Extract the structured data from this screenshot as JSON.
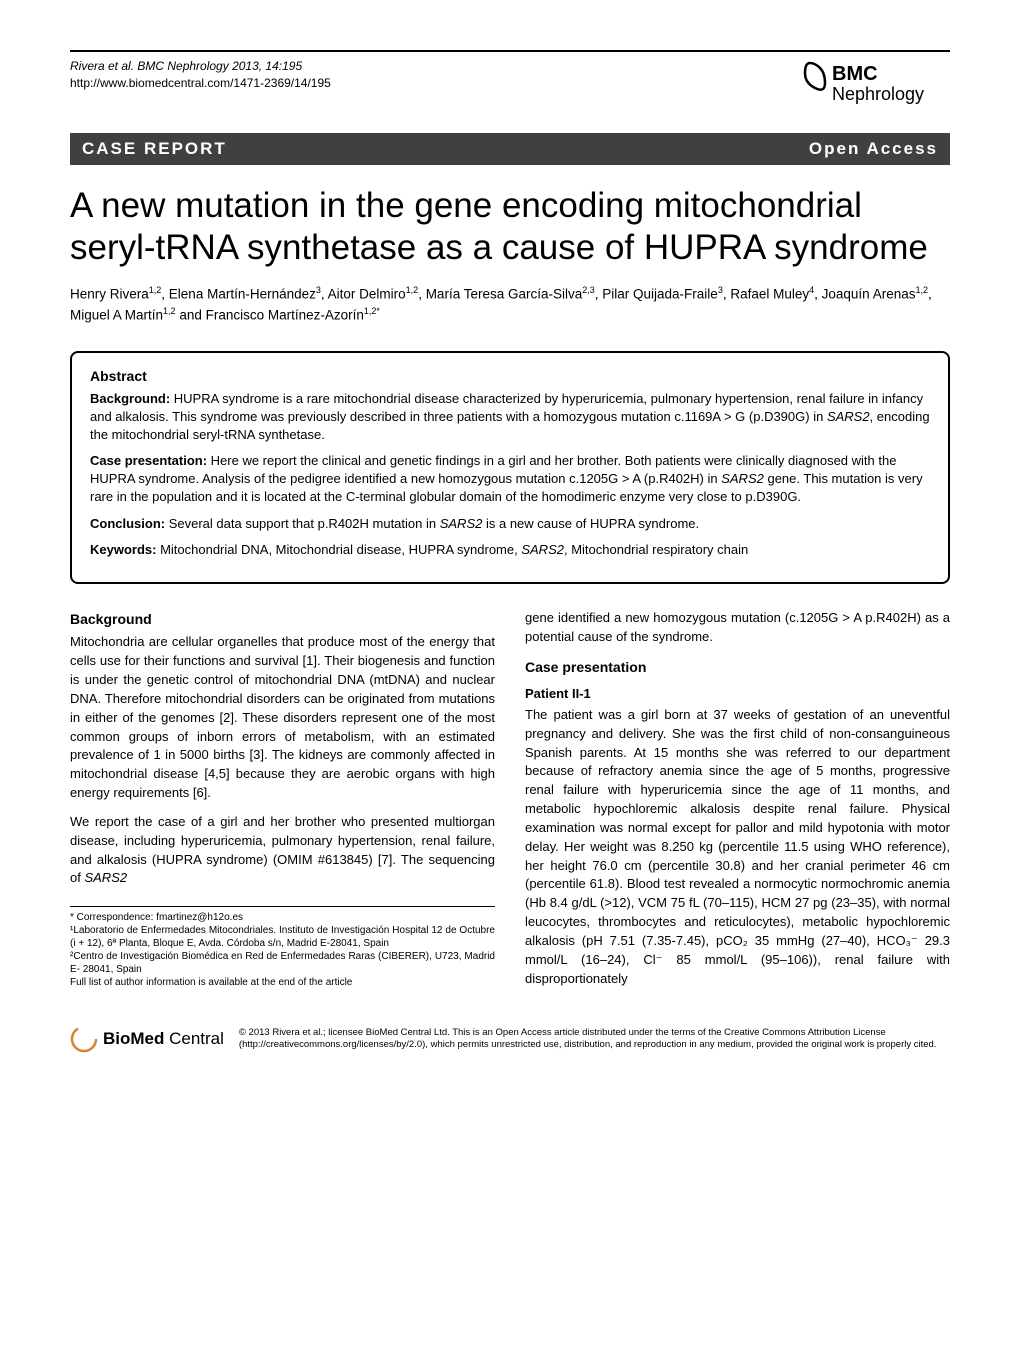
{
  "header": {
    "citation": "Rivera et al. BMC Nephrology 2013, 14:195",
    "url": "http://www.biomedcentral.com/1471-2369/14/195",
    "logo_prefix": "BMC",
    "logo_name": "Nephrology"
  },
  "bar": {
    "label": "CASE REPORT",
    "access": "Open Access"
  },
  "title": "A new mutation in the gene encoding mitochondrial seryl-tRNA synthetase as a cause of HUPRA syndrome",
  "authors_html": "Henry Rivera<sup>1,2</sup>, Elena Martín-Hernández<sup>3</sup>, Aitor Delmiro<sup>1,2</sup>, María Teresa García-Silva<sup>2,3</sup>, Pilar Quijada-Fraile<sup>3</sup>, Rafael Muley<sup>4</sup>, Joaquín Arenas<sup>1,2</sup>, Miguel A Martín<sup>1,2</sup> and Francisco Martínez-Azorín<sup>1,2*</sup>",
  "abstract": {
    "heading": "Abstract",
    "background_label": "Background:",
    "background": " HUPRA syndrome is a rare mitochondrial disease characterized by hyperuricemia, pulmonary hypertension, renal failure in infancy and alkalosis. This syndrome was previously described in three patients with a homozygous mutation c.1169A > G (p.D390G) in SARS2, encoding the mitochondrial seryl-tRNA synthetase.",
    "case_label": "Case presentation:",
    "case": " Here we report the clinical and genetic findings in a girl and her brother. Both patients were clinically diagnosed with the HUPRA syndrome. Analysis of the pedigree identified a new homozygous mutation c.1205G > A (p.R402H) in SARS2 gene. This mutation is very rare in the population and it is located at the C-terminal globular domain of the homodimeric enzyme very close to p.D390G.",
    "conclusion_label": "Conclusion:",
    "conclusion": " Several data support that p.R402H mutation in SARS2 is a new cause of HUPRA syndrome.",
    "keywords_label": "Keywords:",
    "keywords": " Mitochondrial DNA, Mitochondrial disease, HUPRA syndrome, SARS2, Mitochondrial respiratory chain"
  },
  "body": {
    "background_heading": "Background",
    "background_p1": "Mitochondria are cellular organelles that produce most of the energy that cells use for their functions and survival [1]. Their biogenesis and function is under the genetic control of mitochondrial DNA (mtDNA) and nuclear DNA. Therefore mitochondrial disorders can be originated from mutations in either of the genomes [2]. These disorders represent one of the most common groups of inborn errors of metabolism, with an estimated prevalence of 1 in 5000 births [3]. The kidneys are commonly affected in mitochondrial disease [4,5] because they are aerobic organs with high energy requirements [6].",
    "background_p2": "We report the case of a girl and her brother who presented multiorgan disease, including hyperuricemia, pulmonary hypertension, renal failure, and alkalosis (HUPRA syndrome) (OMIM #613845) [7]. The sequencing of SARS2",
    "col2_top": "gene identified a new homozygous mutation (c.1205G > A p.R402H) as a potential cause of the syndrome.",
    "case_heading": "Case presentation",
    "patient_heading": "Patient II-1",
    "case_p1": "The patient was a girl born at 37 weeks of gestation of an uneventful pregnancy and delivery. She was the first child of non-consanguineous Spanish parents. At 15 months she was referred to our department because of refractory anemia since the age of 5 months, progressive renal failure with hyperuricemia since the age of 11 months, and metabolic hypochloremic alkalosis despite renal failure. Physical examination was normal except for pallor and mild hypotonia with motor delay. Her weight was 8.250 kg (percentile 11.5 using WHO reference), her height 76.0 cm (percentile 30.8) and her cranial perimeter 46 cm (percentile 61.8). Blood test revealed a normocytic normochromic anemia (Hb 8.4 g/dL (>12), VCM 75 fL (70–115), HCM 27 pg (23–35), with normal leucocytes, thrombocytes and reticulocytes), metabolic hypochloremic alkalosis (pH 7.51 (7.35-7.45), pCO₂ 35 mmHg (27–40), HCO₃⁻ 29.3 mmol/L (16–24), Cl⁻ 85 mmol/L (95–106)), renal failure with disproportionately"
  },
  "footnotes": {
    "corr": "* Correspondence: fmartinez@h12o.es",
    "aff1": "¹Laboratorio de Enfermedades Mitocondriales. Instituto de Investigación Hospital 12 de Octubre (i + 12), 6ª Planta, Bloque E, Avda. Córdoba s/n, Madrid E-28041, Spain",
    "aff2": "²Centro de Investigación Biomédica en Red de Enfermedades Raras (CIBERER), U723, Madrid E- 28041, Spain",
    "full": "Full list of author information is available at the end of the article"
  },
  "footer": {
    "bmc_bio": "BioMed",
    "bmc_central": " Central",
    "copyright": "© 2013 Rivera et al.; licensee BioMed Central Ltd. This is an Open Access article distributed under the terms of the Creative Commons Attribution License (http://creativecommons.org/licenses/by/2.0), which permits unrestricted use, distribution, and reproduction in any medium, provided the original work is properly cited."
  }
}
